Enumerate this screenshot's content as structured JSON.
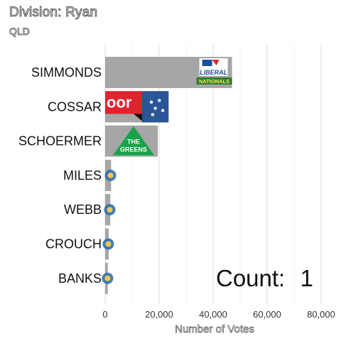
{
  "header": {
    "title": "Division: Ryan",
    "subtitle": "QLD"
  },
  "counter": {
    "label": "Count:",
    "value": "1"
  },
  "colors": {
    "bar": "#a6a6a6",
    "grid": "#e3e3e3",
    "liberal_blue": "#1b4f9c",
    "nationals_green": "#2e7d32",
    "greens_green": "#16a34a",
    "labor_red": "#e0242e",
    "one_nation_navy": "#2a5596"
  },
  "chart_data": {
    "type": "bar",
    "orientation": "horizontal",
    "title": "Division: Ryan",
    "subtitle": "QLD",
    "xlabel": "Number of Votes",
    "ylabel": "",
    "xlim": [
      0,
      80000
    ],
    "xticks": [
      0,
      20000,
      40000,
      60000,
      80000
    ],
    "xtick_labels": [
      "0",
      "20,000",
      "40,000",
      "60,000",
      "80,000"
    ],
    "grid": true,
    "categories": [
      "SIMMONDS",
      "COSSAR",
      "SCHOERMER",
      "MILES",
      "WEBB",
      "CROUCH",
      "BANKS"
    ],
    "values": [
      47000,
      23500,
      19500,
      2200,
      1900,
      1300,
      1000
    ],
    "logos": [
      "liberal-nationals",
      "labor-onenation",
      "greens",
      "party",
      "party",
      "party",
      "party"
    ],
    "logo_text": {
      "liberal": "LIBERAL",
      "nationals": "NATIONALS",
      "greens": [
        "THE",
        "GREENS"
      ],
      "labor": "oor"
    }
  }
}
